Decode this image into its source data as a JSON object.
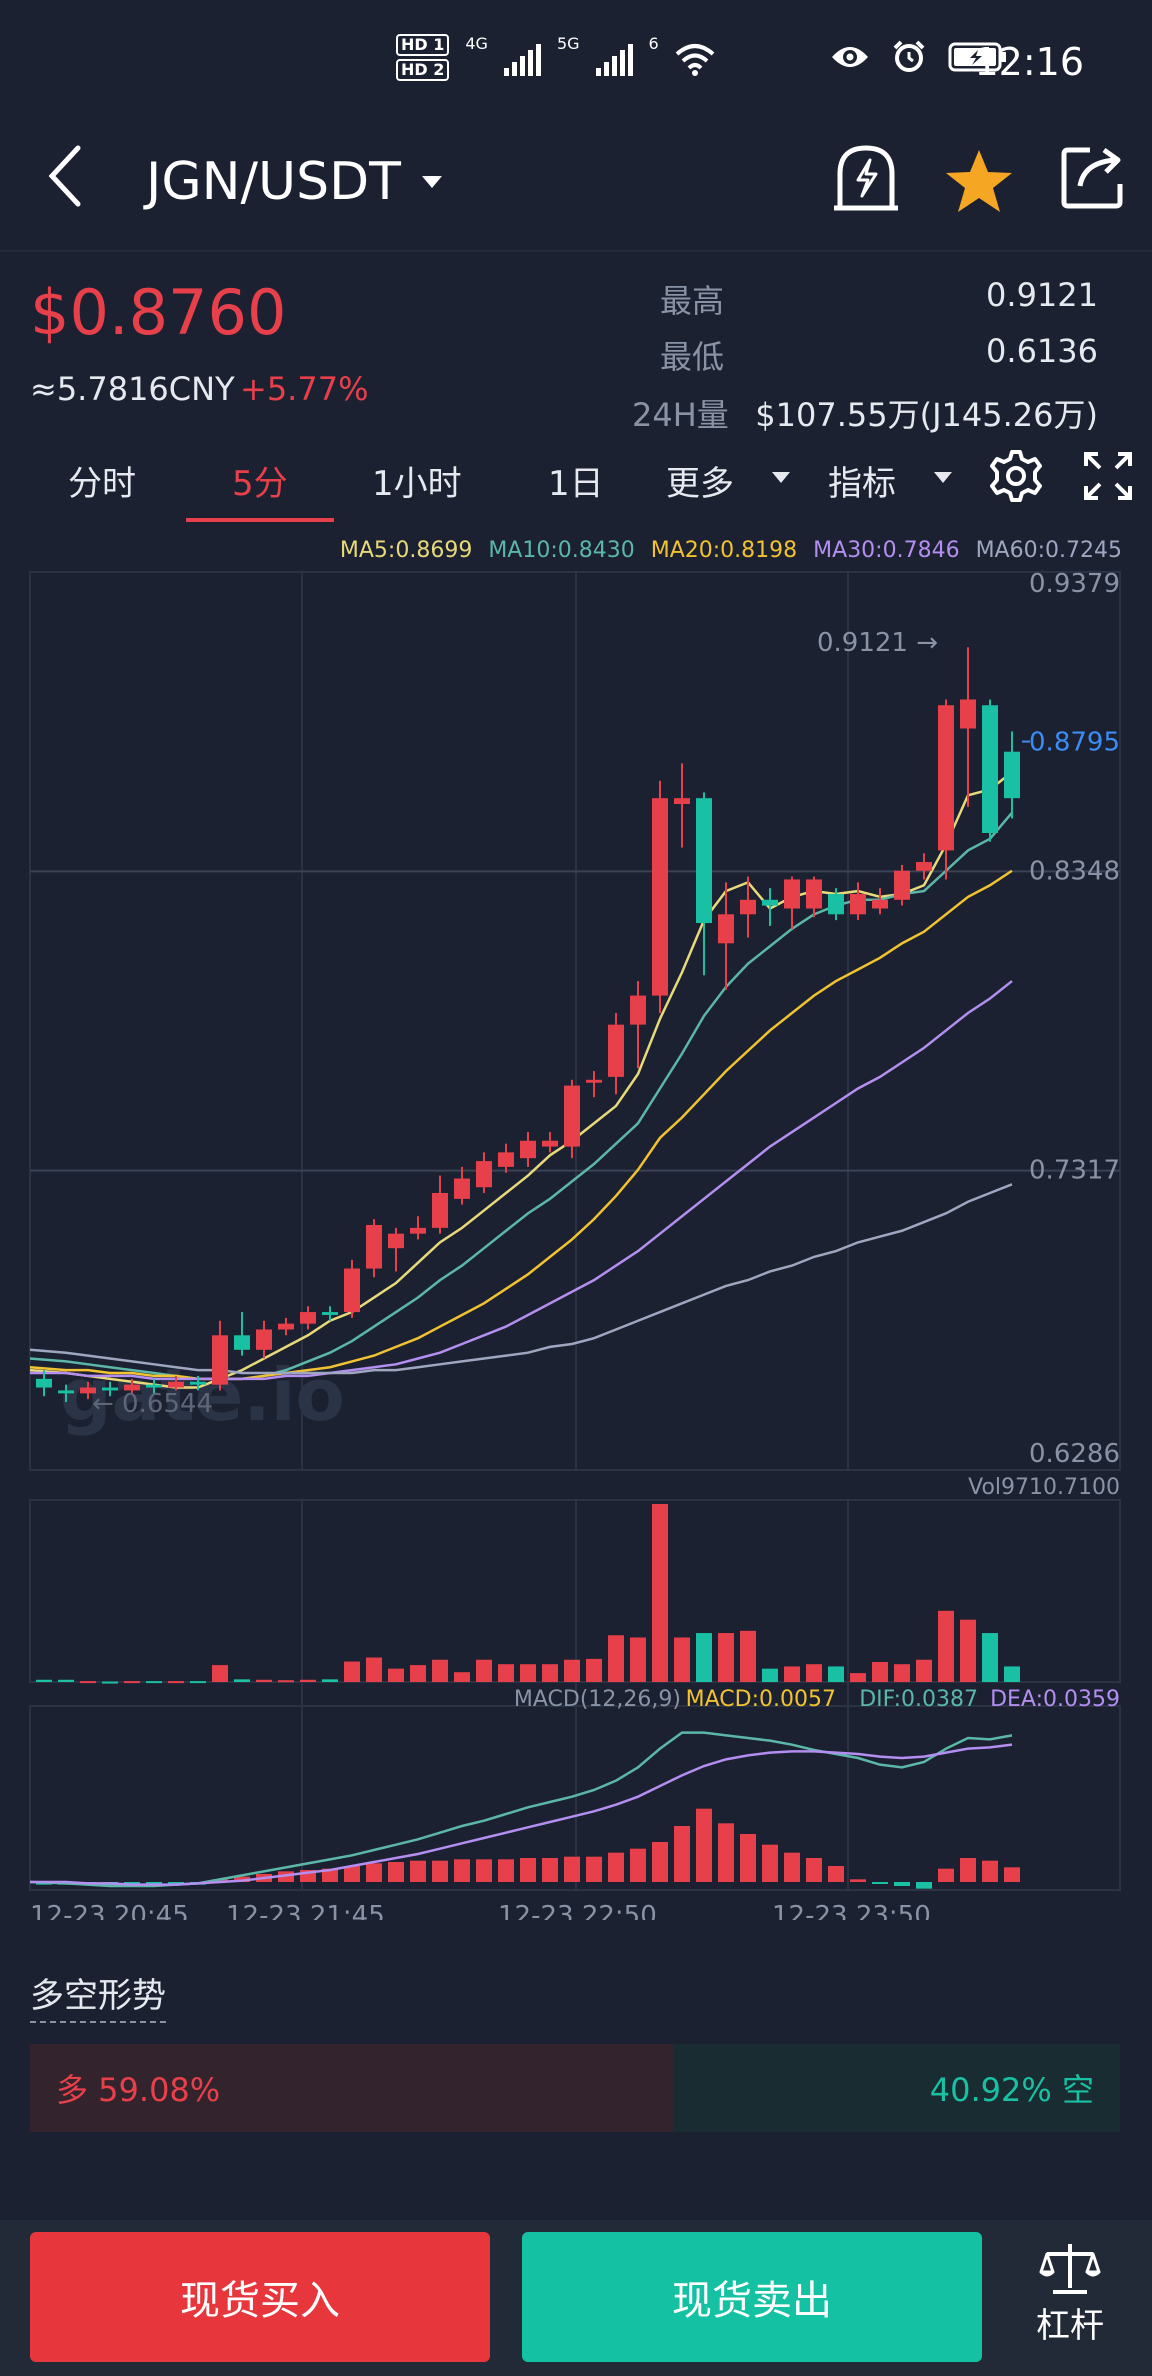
{
  "status_bar": {
    "time": "12:16",
    "sim1": "HD 1",
    "sim2": "HD 2",
    "net1": "4G",
    "net2": "5G",
    "wifi_label": "6"
  },
  "header": {
    "pair": "JGN/USDT",
    "icons": [
      "back-icon",
      "alert-bell-icon",
      "favorite-star-icon",
      "share-icon"
    ],
    "star_color": "#f5a623"
  },
  "ticker": {
    "price": "$0.8760",
    "cny": "≈5.7816CNY",
    "change": "+5.77%",
    "stats": [
      {
        "label": "最高",
        "value": "0.9121"
      },
      {
        "label": "最低",
        "value": "0.6136"
      },
      {
        "label": "24H量",
        "value": "$107.55万(J145.26万)"
      }
    ]
  },
  "tabs": [
    "分时",
    "5分",
    "1小时",
    "1日",
    "更多",
    "指标"
  ],
  "active_tab": "5分",
  "ma_legend": [
    {
      "text": "MA5:0.8699",
      "color": "#e8d97a"
    },
    {
      "text": "MA10:0.8430",
      "color": "#5bb8a8"
    },
    {
      "text": "MA20:0.8198",
      "color": "#f2c230"
    },
    {
      "text": "MA30:0.7846",
      "color": "#b48ef0"
    },
    {
      "text": "MA60:0.7245",
      "color": "#9fa6c0"
    }
  ],
  "chart_data": {
    "type": "candlestick",
    "interval": "5分",
    "y_ticks": [
      "0.9379",
      "0.8348",
      "0.7317",
      "0.6286"
    ],
    "ylim": [
      0.6286,
      0.9379
    ],
    "current_price_label": "0.8795",
    "high_marker": "0.9121",
    "low_marker": "0.6544",
    "x_ticks": [
      "12-23 20:45",
      "12-23 21:45",
      "12-23 22:50",
      "12-23 23:50"
    ],
    "candles": [
      {
        "o": 0.66,
        "c": 0.657,
        "h": 0.663,
        "l": 0.654
      },
      {
        "o": 0.656,
        "c": 0.655,
        "h": 0.658,
        "l": 0.652
      },
      {
        "o": 0.655,
        "c": 0.657,
        "h": 0.659,
        "l": 0.653
      },
      {
        "o": 0.657,
        "c": 0.656,
        "h": 0.659,
        "l": 0.654
      },
      {
        "o": 0.656,
        "c": 0.658,
        "h": 0.66,
        "l": 0.655
      },
      {
        "o": 0.658,
        "c": 0.657,
        "h": 0.66,
        "l": 0.655
      },
      {
        "o": 0.657,
        "c": 0.659,
        "h": 0.661,
        "l": 0.656
      },
      {
        "o": 0.659,
        "c": 0.658,
        "h": 0.661,
        "l": 0.656
      },
      {
        "o": 0.658,
        "c": 0.675,
        "h": 0.68,
        "l": 0.656
      },
      {
        "o": 0.675,
        "c": 0.67,
        "h": 0.683,
        "l": 0.668
      },
      {
        "o": 0.67,
        "c": 0.677,
        "h": 0.68,
        "l": 0.667
      },
      {
        "o": 0.677,
        "c": 0.679,
        "h": 0.681,
        "l": 0.675
      },
      {
        "o": 0.679,
        "c": 0.683,
        "h": 0.685,
        "l": 0.677
      },
      {
        "o": 0.683,
        "c": 0.682,
        "h": 0.685,
        "l": 0.68
      },
      {
        "o": 0.683,
        "c": 0.698,
        "h": 0.701,
        "l": 0.681
      },
      {
        "o": 0.698,
        "c": 0.713,
        "h": 0.715,
        "l": 0.695
      },
      {
        "o": 0.705,
        "c": 0.71,
        "h": 0.712,
        "l": 0.697
      },
      {
        "o": 0.71,
        "c": 0.712,
        "h": 0.716,
        "l": 0.708
      },
      {
        "o": 0.712,
        "c": 0.724,
        "h": 0.73,
        "l": 0.71
      },
      {
        "o": 0.722,
        "c": 0.729,
        "h": 0.733,
        "l": 0.72
      },
      {
        "o": 0.726,
        "c": 0.735,
        "h": 0.738,
        "l": 0.724
      },
      {
        "o": 0.733,
        "c": 0.738,
        "h": 0.741,
        "l": 0.731
      },
      {
        "o": 0.736,
        "c": 0.742,
        "h": 0.745,
        "l": 0.733
      },
      {
        "o": 0.74,
        "c": 0.742,
        "h": 0.745,
        "l": 0.738
      },
      {
        "o": 0.74,
        "c": 0.761,
        "h": 0.763,
        "l": 0.736
      },
      {
        "o": 0.762,
        "c": 0.763,
        "h": 0.766,
        "l": 0.757
      },
      {
        "o": 0.764,
        "c": 0.782,
        "h": 0.786,
        "l": 0.758
      },
      {
        "o": 0.782,
        "c": 0.792,
        "h": 0.797,
        "l": 0.767
      },
      {
        "o": 0.792,
        "c": 0.86,
        "h": 0.866,
        "l": 0.786
      },
      {
        "o": 0.858,
        "c": 0.86,
        "h": 0.872,
        "l": 0.843
      },
      {
        "o": 0.86,
        "c": 0.817,
        "h": 0.862,
        "l": 0.799
      },
      {
        "o": 0.81,
        "c": 0.82,
        "h": 0.831,
        "l": 0.794
      },
      {
        "o": 0.82,
        "c": 0.825,
        "h": 0.833,
        "l": 0.812
      },
      {
        "o": 0.825,
        "c": 0.823,
        "h": 0.829,
        "l": 0.816
      },
      {
        "o": 0.822,
        "c": 0.832,
        "h": 0.833,
        "l": 0.815
      },
      {
        "o": 0.822,
        "c": 0.832,
        "h": 0.833,
        "l": 0.819
      },
      {
        "o": 0.827,
        "c": 0.82,
        "h": 0.829,
        "l": 0.818
      },
      {
        "o": 0.82,
        "c": 0.827,
        "h": 0.831,
        "l": 0.818
      },
      {
        "o": 0.822,
        "c": 0.825,
        "h": 0.829,
        "l": 0.82
      },
      {
        "o": 0.825,
        "c": 0.835,
        "h": 0.837,
        "l": 0.823
      },
      {
        "o": 0.835,
        "c": 0.838,
        "h": 0.841,
        "l": 0.832
      },
      {
        "o": 0.842,
        "c": 0.892,
        "h": 0.894,
        "l": 0.832
      },
      {
        "o": 0.884,
        "c": 0.894,
        "h": 0.912,
        "l": 0.857
      },
      {
        "o": 0.892,
        "c": 0.848,
        "h": 0.894,
        "l": 0.845
      },
      {
        "o": 0.876,
        "c": 0.86,
        "h": 0.883,
        "l": 0.853
      }
    ],
    "ma_series": {
      "MA5": [
        0.663,
        0.662,
        0.661,
        0.66,
        0.659,
        0.658,
        0.657,
        0.657,
        0.66,
        0.663,
        0.667,
        0.671,
        0.675,
        0.68,
        0.683,
        0.688,
        0.693,
        0.7,
        0.707,
        0.712,
        0.718,
        0.724,
        0.73,
        0.737,
        0.742,
        0.748,
        0.754,
        0.765,
        0.784,
        0.8,
        0.818,
        0.828,
        0.831,
        0.822,
        0.826,
        0.828,
        0.827,
        0.828,
        0.826,
        0.827,
        0.83,
        0.844,
        0.861,
        0.863,
        0.869
      ],
      "MA10": [
        0.667,
        0.666,
        0.665,
        0.664,
        0.663,
        0.662,
        0.661,
        0.66,
        0.66,
        0.66,
        0.661,
        0.663,
        0.666,
        0.669,
        0.673,
        0.678,
        0.683,
        0.688,
        0.694,
        0.699,
        0.705,
        0.711,
        0.717,
        0.722,
        0.728,
        0.734,
        0.741,
        0.748,
        0.76,
        0.772,
        0.785,
        0.795,
        0.803,
        0.809,
        0.815,
        0.82,
        0.823,
        0.825,
        0.825,
        0.827,
        0.828,
        0.835,
        0.842,
        0.846,
        0.855
      ],
      "MA20": [
        0.664,
        0.663,
        0.663,
        0.662,
        0.662,
        0.661,
        0.661,
        0.66,
        0.66,
        0.66,
        0.661,
        0.662,
        0.663,
        0.664,
        0.666,
        0.668,
        0.671,
        0.674,
        0.678,
        0.682,
        0.686,
        0.691,
        0.696,
        0.702,
        0.708,
        0.715,
        0.723,
        0.732,
        0.743,
        0.75,
        0.758,
        0.766,
        0.773,
        0.78,
        0.786,
        0.792,
        0.797,
        0.801,
        0.805,
        0.81,
        0.814,
        0.82,
        0.826,
        0.83,
        0.835
      ],
      "MA30": [
        0.662,
        0.662,
        0.661,
        0.661,
        0.661,
        0.66,
        0.66,
        0.66,
        0.66,
        0.66,
        0.66,
        0.661,
        0.661,
        0.662,
        0.663,
        0.664,
        0.665,
        0.667,
        0.669,
        0.672,
        0.675,
        0.678,
        0.682,
        0.686,
        0.69,
        0.694,
        0.699,
        0.704,
        0.71,
        0.716,
        0.722,
        0.728,
        0.734,
        0.74,
        0.745,
        0.75,
        0.755,
        0.76,
        0.764,
        0.769,
        0.774,
        0.78,
        0.786,
        0.791,
        0.797
      ],
      "MA60": [
        0.67,
        0.669,
        0.668,
        0.667,
        0.666,
        0.665,
        0.664,
        0.663,
        0.663,
        0.662,
        0.662,
        0.662,
        0.662,
        0.662,
        0.662,
        0.663,
        0.663,
        0.664,
        0.665,
        0.666,
        0.667,
        0.668,
        0.669,
        0.671,
        0.672,
        0.674,
        0.677,
        0.68,
        0.683,
        0.686,
        0.689,
        0.692,
        0.694,
        0.697,
        0.699,
        0.702,
        0.704,
        0.707,
        0.709,
        0.711,
        0.714,
        0.717,
        0.721,
        0.724,
        0.727
      ]
    },
    "volume_label": "Vol9710.7100",
    "volume": [
      5,
      5,
      2,
      1,
      2,
      2,
      2,
      2,
      38,
      6,
      5,
      4,
      5,
      6,
      46,
      55,
      30,
      38,
      50,
      22,
      50,
      40,
      40,
      40,
      50,
      52,
      105,
      100,
      400,
      100,
      110,
      110,
      115,
      30,
      35,
      40,
      35,
      20,
      45,
      40,
      50,
      160,
      140,
      110,
      35
    ],
    "macd_labels": [
      {
        "text": "MACD(12,26,9)",
        "color": "#8a93a6"
      },
      {
        "text": "MACD:0.0057",
        "color": "#f2c230"
      },
      {
        "text": "DIF:0.0387",
        "color": "#5bb8a8"
      },
      {
        "text": "DEA:0.0359",
        "color": "#b48ef0"
      }
    ],
    "macd_hist": [
      -2,
      -2,
      -2,
      -3,
      -3,
      -3,
      -2,
      -2,
      2,
      4,
      6,
      8,
      9,
      10,
      12,
      14,
      15,
      16,
      16,
      17,
      17,
      17,
      18,
      18,
      19,
      19,
      22,
      25,
      30,
      42,
      55,
      44,
      36,
      28,
      22,
      18,
      12,
      2,
      -1,
      -3,
      -5,
      10,
      18,
      16,
      11
    ],
    "dif": [
      0,
      -1,
      -2,
      -3,
      -3,
      -3,
      -2,
      -1,
      2,
      5,
      8,
      11,
      14,
      17,
      20,
      24,
      28,
      32,
      37,
      42,
      46,
      51,
      56,
      60,
      64,
      69,
      76,
      86,
      100,
      112,
      112,
      110,
      108,
      106,
      103,
      99,
      96,
      93,
      88,
      86,
      90,
      100,
      108,
      107,
      110
    ],
    "dea": [
      0,
      0,
      -1,
      -1,
      -2,
      -2,
      -2,
      -1,
      0,
      1,
      3,
      5,
      7,
      9,
      12,
      15,
      18,
      21,
      25,
      29,
      33,
      37,
      41,
      45,
      49,
      53,
      58,
      64,
      72,
      80,
      87,
      92,
      95,
      97,
      98,
      98,
      97,
      96,
      94,
      93,
      94,
      97,
      100,
      101,
      103
    ]
  },
  "sentiment": {
    "title": "多空形势",
    "long_text": "多 59.08%",
    "short_text": "40.92% 空",
    "long_pct": 59.08,
    "long_color": "#e8404a",
    "short_color": "#19c0a3"
  },
  "actions": {
    "buy": "现货买入",
    "sell": "现货卖出",
    "leverage": "杠杆",
    "buy_color": "#e8363d",
    "sell_color": "#14c2a3"
  },
  "colors": {
    "up": "#e8404a",
    "down": "#19c0a3",
    "accent": "#e8404a",
    "current_price": "#3b8df5"
  }
}
